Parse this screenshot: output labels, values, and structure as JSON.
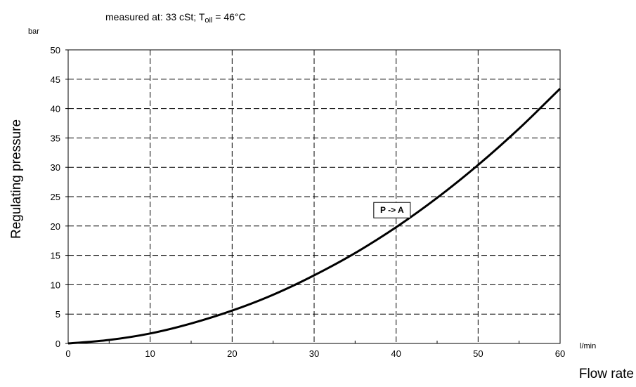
{
  "chart_data": {
    "type": "line",
    "note": {
      "prefix": "measured at:  33 cSt; T",
      "subscript": "oil",
      "suffix": "  = 46°C"
    },
    "ylabel": "Regulating pressure",
    "yunit": "bar",
    "xlabel": "Flow rate",
    "xunit": "l/min",
    "xlim": [
      0,
      60
    ],
    "ylim": [
      0,
      50
    ],
    "xticks": [
      0,
      10,
      20,
      30,
      40,
      50,
      60
    ],
    "yticks": [
      0,
      5,
      10,
      15,
      20,
      25,
      30,
      35,
      40,
      45,
      50
    ],
    "grid": true,
    "series": [
      {
        "x": [
          0,
          5,
          10,
          15,
          20,
          25,
          30,
          35,
          40,
          45,
          50,
          55,
          60
        ],
        "y": [
          0,
          0.6,
          1.7,
          3.4,
          5.6,
          8.3,
          11.6,
          15.4,
          19.8,
          24.8,
          30.4,
          36.6,
          43.4
        ]
      }
    ],
    "annotations": [
      {
        "text": "P -> A",
        "x": 39.5,
        "y": 22.7
      }
    ]
  }
}
